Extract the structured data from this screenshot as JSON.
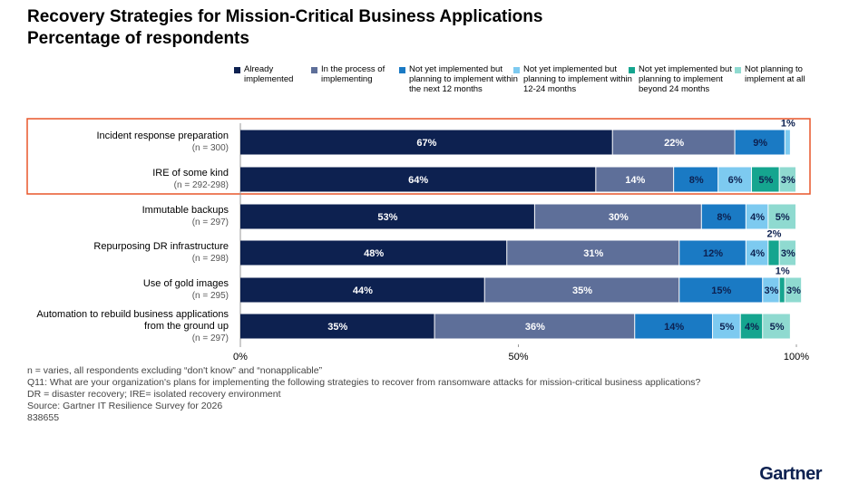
{
  "chart_data": {
    "type": "stacked-bar",
    "title": "Recovery Strategies for Mission-Critical Business Applications",
    "subtitle": "Percentage of respondents",
    "categories": [
      "Incident response preparation",
      "IRE of some kind",
      "Immutable backups",
      "Repurposing DR infrastructure",
      "Use of gold images",
      "Automation to rebuild business applications from the ground up"
    ],
    "category_notes": [
      "(n = 300)",
      "(n = 292-298)",
      "(n = 297)",
      "(n = 298)",
      "(n = 295)",
      "(n = 297)"
    ],
    "series": [
      {
        "name": "Already implemented",
        "color": "#0d2150",
        "values": [
          67,
          64,
          53,
          48,
          44,
          35
        ],
        "value_labels": [
          "67%",
          "64%",
          "53%",
          "48%",
          "44%",
          "35%"
        ]
      },
      {
        "name": "In the process of implementing",
        "color": "#5e6f99",
        "values": [
          22,
          14,
          30,
          31,
          35,
          36
        ],
        "value_labels": [
          "22%",
          "14%",
          "30%",
          "31%",
          "35%",
          "36%"
        ]
      },
      {
        "name": "Not yet implemented but planning to implement within the next 12 months",
        "color": "#1a7ac4",
        "values": [
          9,
          8,
          8,
          12,
          15,
          14
        ],
        "value_labels": [
          "9%",
          "8%",
          "8%",
          "12%",
          "15%",
          "14%"
        ]
      },
      {
        "name": "Not yet implemented but planning to implement within 12-24 months",
        "color": "#7dcaf0",
        "values": [
          1,
          6,
          4,
          4,
          3,
          5
        ],
        "value_labels": [
          "1%",
          "6%",
          "4%",
          "4%",
          "3%",
          "5%"
        ]
      },
      {
        "name": "Not yet implemented but planning to implement beyond 24 months",
        "color": "#15a58f",
        "values": [
          0,
          5,
          0,
          2,
          1,
          4
        ],
        "value_labels": [
          null,
          "5%",
          null,
          "2%",
          "1%",
          "4%"
        ]
      },
      {
        "name": "Not planning to implement at all",
        "color": "#8fdad0",
        "values": [
          0,
          3,
          5,
          3,
          3,
          5
        ],
        "value_labels": [
          null,
          "3%",
          "5%",
          "3%",
          "3%",
          "5%"
        ]
      }
    ],
    "xlim": [
      0,
      100
    ],
    "xticks": [
      {
        "value": 0,
        "label": "0%"
      },
      {
        "value": 50,
        "label": "50%"
      },
      {
        "value": 100,
        "label": "100%"
      }
    ],
    "notes": [
      "n = varies, all respondents excluding “don't know” and “nonapplicable”",
      "Q11: What are your organization's plans for implementing the following strategies to recover from ransomware attacks for mission-critical business applications?",
      "DR = disaster recovery; IRE= isolated recovery environment",
      "Source: Gartner IT Resilience Survey for 2026",
      "838655"
    ],
    "brand": "Gartner"
  }
}
